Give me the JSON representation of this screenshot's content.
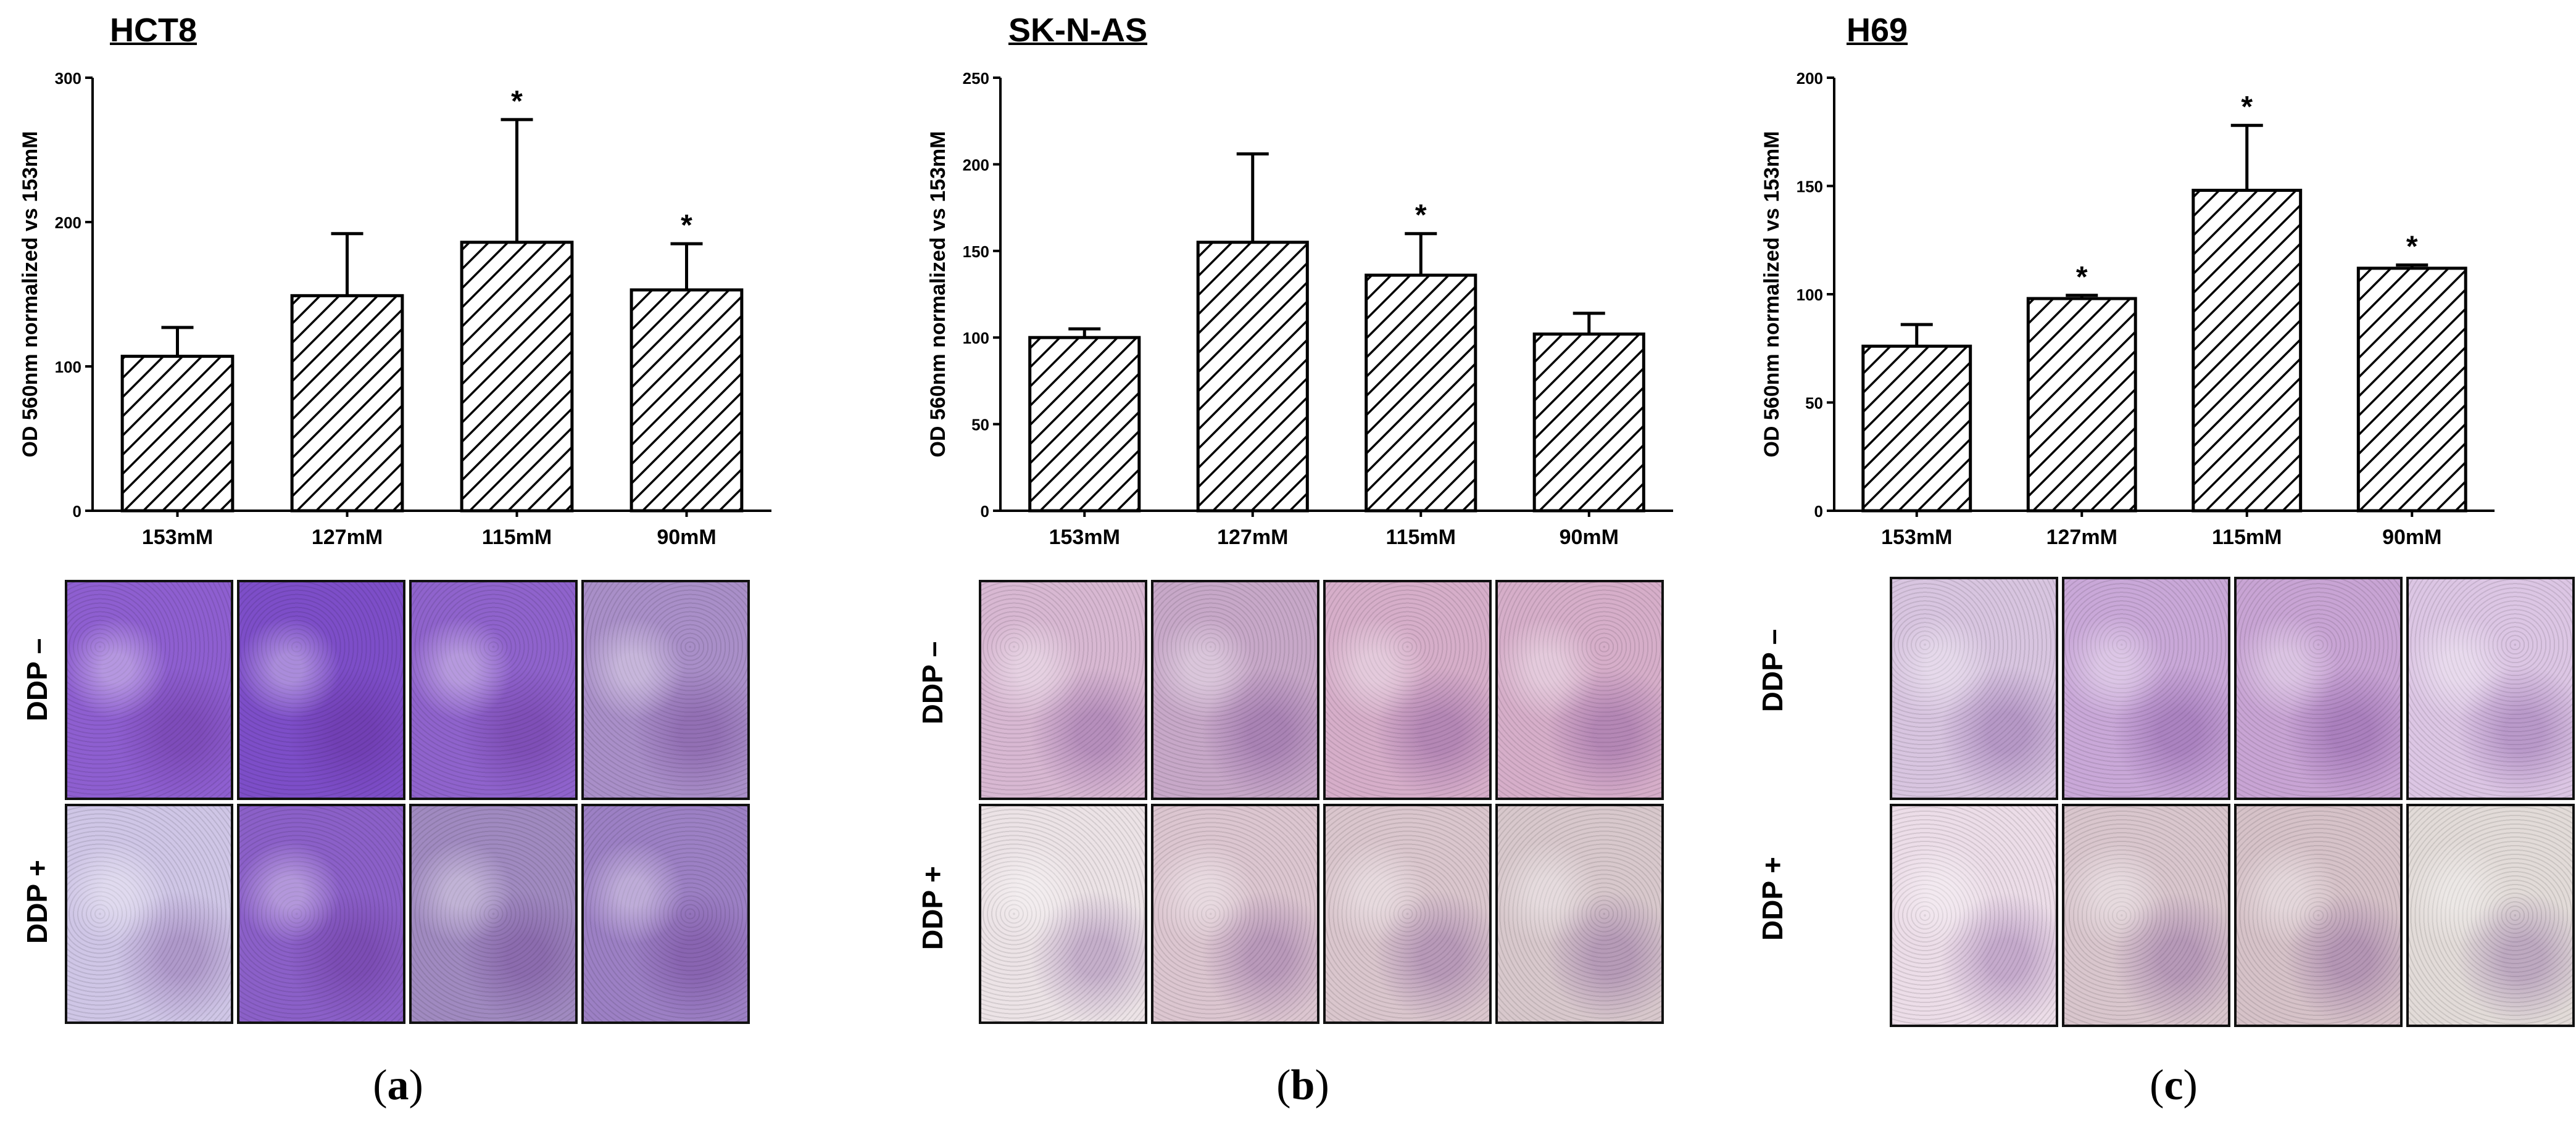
{
  "panels": [
    {
      "caption_letter": "a",
      "row_labels": [
        "DDP  –",
        "DDP  +"
      ],
      "micrographs": {
        "minus": [
          "#8e5fd0",
          "#7d4ec8",
          "#8f63cc",
          "#a98fc8"
        ],
        "plus": [
          "#cfc6e6",
          "#8b60c8",
          "#a08ac0",
          "#9c80c4"
        ]
      }
    },
    {
      "caption_letter": "b",
      "row_labels": [
        "DDP  –",
        "DDP  +"
      ],
      "micrographs": {
        "minus": [
          "#d8b8d2",
          "#c7a8c8",
          "#d6aec9",
          "#d6aec9"
        ],
        "plus": [
          "#ece3e6",
          "#dcc6d0",
          "#dac6cd",
          "#d8c8cc"
        ]
      }
    },
    {
      "caption_letter": "c",
      "row_labels": [
        "DDP  –",
        "DDP  +"
      ],
      "micrographs": {
        "minus": [
          "#d8c5e0",
          "#c9a8d8",
          "#c8a4d4",
          "#dcc6e4"
        ],
        "plus": [
          "#ecdde8",
          "#d9c6cd",
          "#d6c2c8",
          "#e2dbd8"
        ]
      }
    }
  ],
  "chart_data": [
    {
      "type": "bar",
      "title": "HCT8",
      "ylabel": "OD 560nm normalized vs 153mM",
      "categories": [
        "153mM",
        "127mM",
        "115mM",
        "90mM"
      ],
      "values": [
        107,
        149,
        186,
        153
      ],
      "errors": [
        20,
        43,
        85,
        32
      ],
      "significant": [
        false,
        false,
        true,
        true
      ],
      "ylim": [
        0,
        300
      ],
      "yticks": [
        0,
        100,
        200,
        300
      ],
      "fill": "hatched"
    },
    {
      "type": "bar",
      "title": "SK-N-AS",
      "ylabel": "OD 560nm normalized vs 153mM",
      "categories": [
        "153mM",
        "127mM",
        "115mM",
        "90mM"
      ],
      "values": [
        100,
        155,
        136,
        102
      ],
      "errors": [
        5,
        51,
        24,
        12
      ],
      "significant": [
        false,
        false,
        true,
        false
      ],
      "ylim": [
        0,
        250
      ],
      "yticks": [
        0,
        50,
        100,
        150,
        200,
        250
      ],
      "fill": "hatched"
    },
    {
      "type": "bar",
      "title": "H69",
      "ylabel": "OD 560nm normalized vs 153mM",
      "categories": [
        "153mM",
        "127mM",
        "115mM",
        "90mM"
      ],
      "values": [
        76,
        98,
        148,
        112
      ],
      "errors": [
        10,
        1.5,
        30,
        1.5
      ],
      "significant": [
        false,
        true,
        true,
        true
      ],
      "ylim": [
        0,
        200
      ],
      "yticks": [
        0,
        50,
        100,
        150,
        200
      ],
      "fill": "hatched"
    }
  ],
  "marker_symbol": "*"
}
